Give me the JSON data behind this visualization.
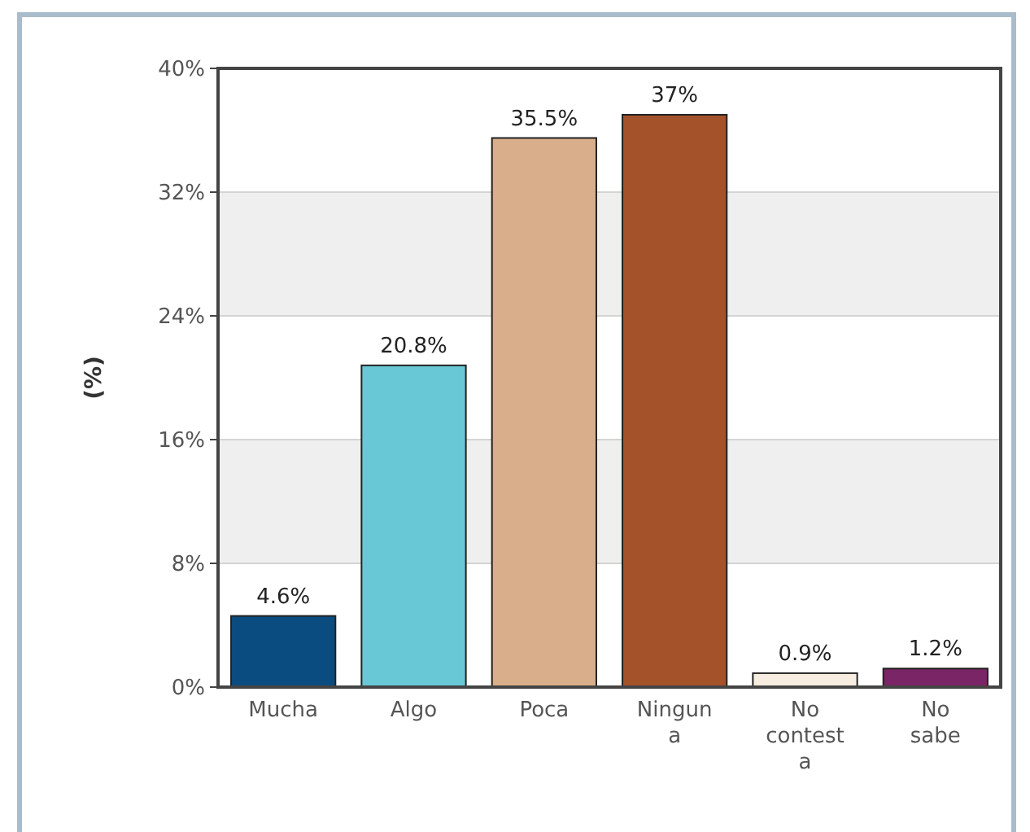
{
  "chart_data": {
    "type": "bar",
    "ylabel": "(%)",
    "categories": [
      "Mucha",
      "Algo",
      "Poca",
      "Ningun a",
      "No contest a",
      "No sabe"
    ],
    "values": [
      4.6,
      20.8,
      35.5,
      37,
      0.9,
      1.2
    ],
    "colors": [
      "#0b4c80",
      "#69c8d6",
      "#d8af8a",
      "#a3522a",
      "#f6ede0",
      "#7a2566"
    ],
    "value_labels": [
      "4.6%",
      "20.8%",
      "35.5%",
      "37%",
      "0.9%",
      "1.2%"
    ],
    "ylim": [
      0,
      40
    ],
    "yticks": [
      {
        "value": 0,
        "label": "0%"
      },
      {
        "value": 8,
        "label": "8%"
      },
      {
        "value": 16,
        "label": "16%"
      },
      {
        "value": 24,
        "label": "24%"
      },
      {
        "value": 32,
        "label": "32%"
      },
      {
        "value": 40,
        "label": "40%"
      }
    ],
    "grid": "y"
  }
}
